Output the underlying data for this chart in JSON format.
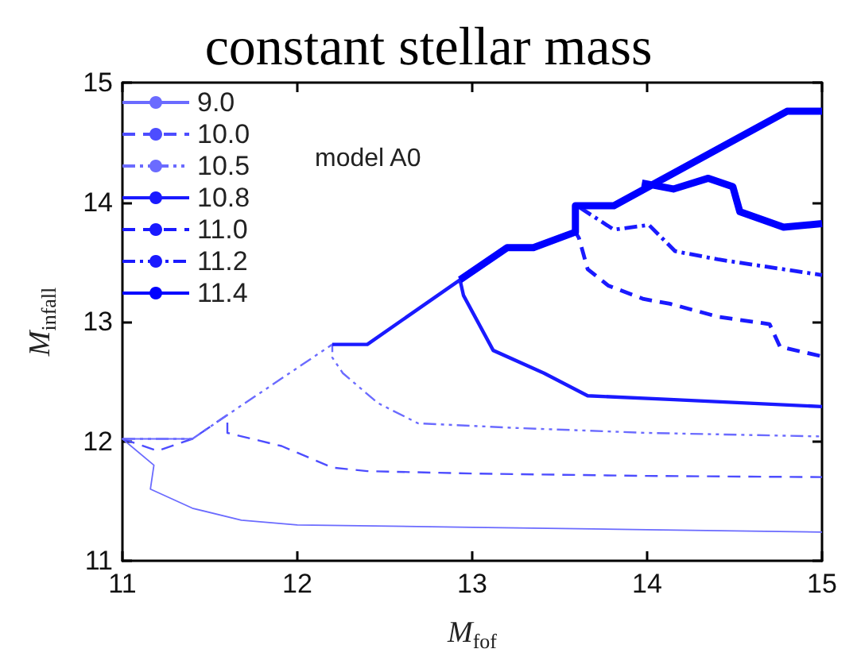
{
  "chart_data": {
    "type": "line",
    "title": "constant stellar mass",
    "xlabel": "M$_{fof}$",
    "ylabel": "M$_{infall}$",
    "annotations": [
      "model A0"
    ],
    "xlim": [
      11,
      15
    ],
    "ylim": [
      11,
      15
    ],
    "xticks": [
      11,
      12,
      13,
      14,
      15
    ],
    "yticks": [
      11,
      12,
      13,
      14,
      15
    ],
    "grid": false,
    "legend": "top left",
    "marker": "none",
    "series": [
      {
        "name": "9.0",
        "color": "#6b6bff",
        "line_style": "solid",
        "x": [
          11.4,
          11,
          11.18,
          11.16,
          11.4,
          11.68,
          12,
          13,
          14,
          15
        ],
        "values": [
          12.02,
          12.02,
          11.8,
          11.6,
          11.44,
          11.34,
          11.3,
          11.28,
          11.26,
          11.24
        ]
      },
      {
        "name": "10.0",
        "color": "#4d4dff",
        "line_style": "dashed",
        "x": [
          11,
          11.2,
          11.4,
          11.6,
          11.6,
          11.91,
          12.2,
          12.4,
          13,
          14,
          15
        ],
        "values": [
          12.02,
          11.92,
          12.02,
          12.22,
          12.07,
          11.96,
          11.78,
          11.75,
          11.73,
          11.71,
          11.7
        ]
      },
      {
        "name": "10.5",
        "color": "#6b6bff",
        "line_style": "dashdotdot",
        "x": [
          11,
          11.4,
          11.6,
          12.2,
          12.2,
          12.26,
          12.46,
          12.69,
          13.27,
          14,
          15
        ],
        "values": [
          12.02,
          12.02,
          12.22,
          12.81,
          12.7,
          12.57,
          12.32,
          12.15,
          12.11,
          12.07,
          12.04
        ]
      },
      {
        "name": "10.8",
        "color": "#1a1aff",
        "line_style": "solid",
        "x": [
          12.2,
          12.4,
          12.93,
          12.95,
          13.12,
          13.41,
          13.66,
          14.13,
          15
        ],
        "values": [
          12.81,
          12.81,
          13.35,
          13.22,
          12.76,
          12.57,
          12.38,
          12.35,
          12.29
        ]
      },
      {
        "name": "11.0",
        "color": "#1a1aff",
        "line_style": "dashed",
        "x": [
          12.93,
          13.2,
          13.35,
          13.59,
          13.61,
          13.66,
          13.78,
          13.98,
          14.13,
          14.41,
          14.7,
          14.76,
          15
        ],
        "values": [
          13.35,
          13.62,
          13.62,
          13.75,
          13.7,
          13.44,
          13.3,
          13.19,
          13.15,
          13.04,
          12.98,
          12.79,
          12.71
        ]
      },
      {
        "name": "11.2",
        "color": "#1a1aff",
        "line_style": "dashdot",
        "x": [
          13.35,
          13.59,
          13.59,
          13.62,
          13.81,
          14.01,
          14.16,
          14.41,
          15
        ],
        "values": [
          13.62,
          13.75,
          13.97,
          13.95,
          13.77,
          13.81,
          13.59,
          13.52,
          13.39
        ]
      },
      {
        "name": "11.4",
        "color": "#0000ff",
        "line_style": "solid",
        "x": [
          12.93,
          13.2,
          13.35,
          13.59,
          13.59,
          13.81,
          14.8,
          15,
          null,
          13.97,
          14.15,
          14.35,
          14.49,
          14.53,
          14.78,
          15
        ],
        "values": [
          13.35,
          13.62,
          13.62,
          13.75,
          13.97,
          13.97,
          14.76,
          14.76,
          null,
          14.16,
          14.11,
          14.2,
          14.13,
          13.92,
          13.79,
          13.82
        ]
      }
    ]
  }
}
